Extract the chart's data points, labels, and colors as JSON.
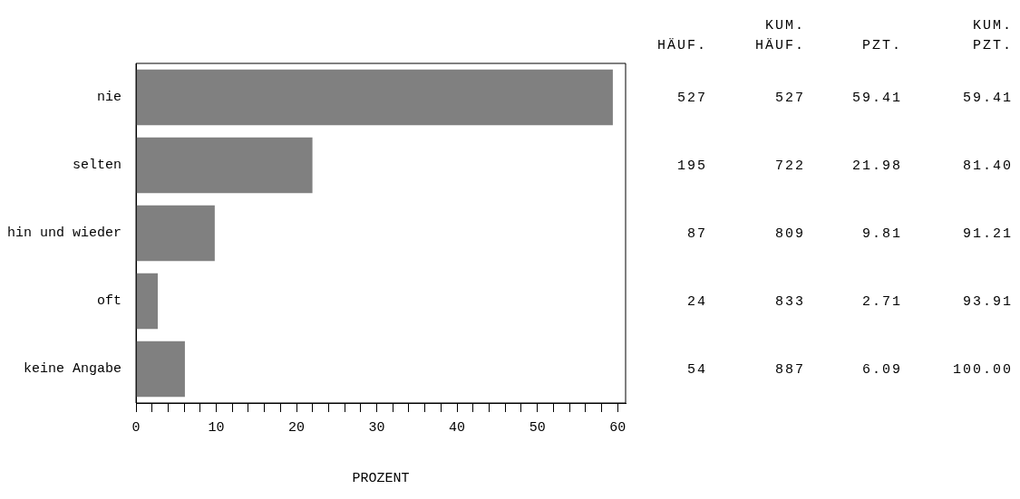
{
  "chart_data": {
    "type": "bar",
    "orientation": "horizontal",
    "xlabel": "PROZENT",
    "categories": [
      "nie",
      "selten",
      "hin und wieder",
      "oft",
      "keine Angabe"
    ],
    "values": [
      59.41,
      21.98,
      9.81,
      2.71,
      6.09
    ],
    "value_labels": [
      "59.41",
      "21.98",
      "9.81",
      "2.71",
      "6.09"
    ],
    "color": "#808080",
    "xlim": [
      0,
      61
    ],
    "xticks": [
      0,
      {
        "value": 2,
        "label": null
      },
      {
        "value": 4,
        "label": null
      },
      {
        "value": 6,
        "label": null
      },
      {
        "value": 8,
        "label": null
      },
      10,
      {
        "value": 12,
        "label": null
      },
      {
        "value": 14,
        "label": null
      },
      {
        "value": 16,
        "label": null
      },
      {
        "value": 18,
        "label": null
      },
      20,
      {
        "value": 22,
        "label": null
      },
      {
        "value": 24,
        "label": null
      },
      {
        "value": 26,
        "label": null
      },
      {
        "value": 28,
        "label": null
      },
      30,
      {
        "value": 32,
        "label": null
      },
      {
        "value": 34,
        "label": null
      },
      {
        "value": 36,
        "label": null
      },
      {
        "value": 38,
        "label": null
      },
      40,
      {
        "value": 42,
        "label": null
      },
      {
        "value": 44,
        "label": null
      },
      {
        "value": 46,
        "label": null
      },
      {
        "value": 48,
        "label": null
      },
      50,
      {
        "value": 52,
        "label": null
      },
      {
        "value": 54,
        "label": null
      },
      {
        "value": 56,
        "label": null
      },
      {
        "value": 58,
        "label": null
      },
      60
    ],
    "annotations": [
      "HÄUF.",
      "KUM. HÄUF.",
      "PZT.",
      "KUM. PZT.",
      "527",
      "527",
      "59.41",
      "195",
      "722",
      "81.40",
      "87",
      "809",
      "91.21",
      "24",
      "833",
      "93.91",
      "54",
      "887",
      "100.00"
    ],
    "grid": false,
    "legend": false
  }
}
